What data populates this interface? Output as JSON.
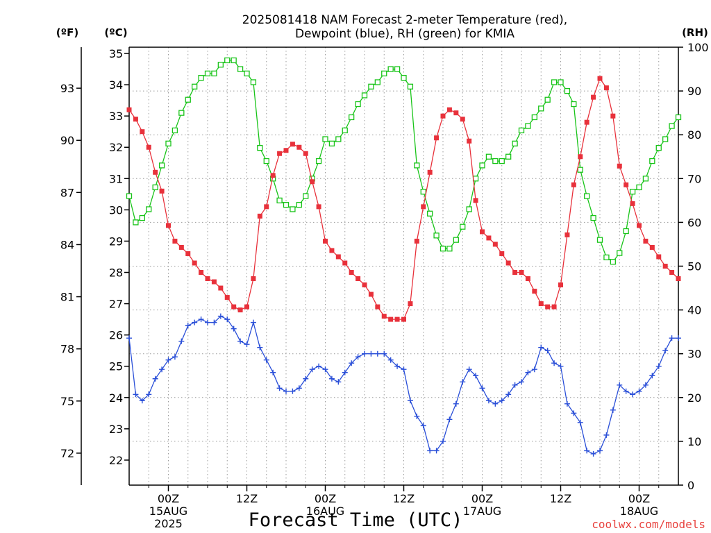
{
  "title_line1": "2025081418 NAM Forecast 2-meter Temperature (red),",
  "title_line2": "Dewpoint (blue), RH (green) for KMIA",
  "units": {
    "fahrenheit": "(ºF)",
    "celsius": "(ºC)",
    "rh": "(RH)"
  },
  "credit": "coolwx.com/models",
  "colors": {
    "temperature": "#e8313b",
    "dewpoint": "#2a4fd8",
    "rh": "#18c418"
  },
  "chart_data": {
    "type": "line",
    "title": "2025081418 NAM Forecast 2-meter Temperature (red), Dewpoint (blue), RH (green) for KMIA",
    "xlabel": "Forecast Time (UTC)",
    "x_unit": "forecast hour from 2025081418",
    "x_range": [
      0,
      84
    ],
    "x_ticks": [
      {
        "hour": 6,
        "label": "00Z",
        "label2": "15AUG",
        "label3": "2025"
      },
      {
        "hour": 18,
        "label": "12Z",
        "label2": "",
        "label3": ""
      },
      {
        "hour": 30,
        "label": "00Z",
        "label2": "16AUG",
        "label3": ""
      },
      {
        "hour": 42,
        "label": "12Z",
        "label2": "",
        "label3": ""
      },
      {
        "hour": 54,
        "label": "00Z",
        "label2": "17AUG",
        "label3": ""
      },
      {
        "hour": 66,
        "label": "12Z",
        "label2": "",
        "label3": ""
      },
      {
        "hour": 78,
        "label": "00Z",
        "label2": "18AUG",
        "label3": ""
      }
    ],
    "y_left_celsius": {
      "range": [
        21.2,
        35.2
      ],
      "ticks": [
        "22",
        "23",
        "24",
        "25",
        "26",
        "27",
        "28",
        "29",
        "30",
        "31",
        "32",
        "33",
        "34",
        "35"
      ]
    },
    "y_far_left_fahrenheit": {
      "ticks": [
        "72",
        "75",
        "78",
        "81",
        "84",
        "87",
        "90",
        "93"
      ]
    },
    "y_right_rh": {
      "range": [
        0,
        100
      ],
      "ticks": [
        "0",
        "10",
        "20",
        "30",
        "40",
        "50",
        "60",
        "70",
        "80",
        "90",
        "100"
      ]
    },
    "grid": true,
    "series": [
      {
        "name": "Temperature",
        "axis": "celsius",
        "marker": "filled-square",
        "x": [
          0,
          1,
          2,
          3,
          4,
          5,
          6,
          7,
          8,
          9,
          10,
          11,
          12,
          13,
          14,
          15,
          16,
          17,
          18,
          19,
          20,
          21,
          22,
          23,
          24,
          25,
          26,
          27,
          28,
          29,
          30,
          31,
          32,
          33,
          34,
          35,
          36,
          37,
          38,
          39,
          40,
          41,
          42,
          43,
          44,
          45,
          46,
          47,
          48,
          49,
          50,
          51,
          52,
          53,
          54,
          55,
          56,
          57,
          58,
          59,
          60,
          61,
          62,
          63,
          64,
          65,
          66,
          67,
          68,
          69,
          70,
          71,
          72,
          73,
          74,
          75,
          76,
          77,
          78,
          79,
          80,
          81,
          82,
          83,
          84
        ],
        "values": [
          33.2,
          32.9,
          32.5,
          32.0,
          31.2,
          30.6,
          29.5,
          29.0,
          28.8,
          28.6,
          28.3,
          28.0,
          27.8,
          27.7,
          27.5,
          27.2,
          26.9,
          26.8,
          26.9,
          27.8,
          29.8,
          30.1,
          31.1,
          31.8,
          31.9,
          32.1,
          32.0,
          31.8,
          30.9,
          30.1,
          29.0,
          28.7,
          28.5,
          28.3,
          28.0,
          27.8,
          27.6,
          27.3,
          26.9,
          26.6,
          26.5,
          26.5,
          26.5,
          27.0,
          29.0,
          30.1,
          31.2,
          32.3,
          33.0,
          33.2,
          33.1,
          32.9,
          32.2,
          30.3,
          29.3,
          29.1,
          28.9,
          28.6,
          28.3,
          28.0,
          28.0,
          27.8,
          27.4,
          27.0,
          26.9,
          26.9,
          27.6,
          29.2,
          30.8,
          31.7,
          32.8,
          33.6,
          34.2,
          33.9,
          33.0,
          31.4,
          30.8,
          30.2,
          29.5,
          29.0,
          28.8,
          28.5,
          28.2,
          28.0,
          27.8
        ]
      },
      {
        "name": "Dewpoint",
        "axis": "celsius",
        "marker": "plus",
        "x": [
          0,
          1,
          2,
          3,
          4,
          5,
          6,
          7,
          8,
          9,
          10,
          11,
          12,
          13,
          14,
          15,
          16,
          17,
          18,
          19,
          20,
          21,
          22,
          23,
          24,
          25,
          26,
          27,
          28,
          29,
          30,
          31,
          32,
          33,
          34,
          35,
          36,
          37,
          38,
          39,
          40,
          41,
          42,
          43,
          44,
          45,
          46,
          47,
          48,
          49,
          50,
          51,
          52,
          53,
          54,
          55,
          56,
          57,
          58,
          59,
          60,
          61,
          62,
          63,
          64,
          65,
          66,
          67,
          68,
          69,
          70,
          71,
          72,
          73,
          74,
          75,
          76,
          77,
          78,
          79,
          80,
          81,
          82,
          83,
          84
        ],
        "values": [
          25.9,
          24.1,
          23.9,
          24.1,
          24.6,
          24.9,
          25.2,
          25.3,
          25.8,
          26.3,
          26.4,
          26.5,
          26.4,
          26.4,
          26.6,
          26.5,
          26.2,
          25.8,
          25.7,
          26.4,
          25.6,
          25.2,
          24.8,
          24.3,
          24.2,
          24.2,
          24.3,
          24.6,
          24.9,
          25.0,
          24.9,
          24.6,
          24.5,
          24.8,
          25.1,
          25.3,
          25.4,
          25.4,
          25.4,
          25.4,
          25.2,
          25.0,
          24.9,
          23.9,
          23.4,
          23.1,
          22.3,
          22.3,
          22.6,
          23.3,
          23.8,
          24.5,
          24.9,
          24.7,
          24.3,
          23.9,
          23.8,
          23.9,
          24.1,
          24.4,
          24.5,
          24.8,
          24.9,
          25.6,
          25.5,
          25.1,
          25.0,
          23.8,
          23.5,
          23.2,
          22.3,
          22.2,
          22.3,
          22.8,
          23.6,
          24.4,
          24.2,
          24.1,
          24.2,
          24.4,
          24.7,
          25.0,
          25.5,
          25.9,
          25.9
        ]
      },
      {
        "name": "RH",
        "axis": "rh",
        "marker": "open-square",
        "x": [
          0,
          1,
          2,
          3,
          4,
          5,
          6,
          7,
          8,
          9,
          10,
          11,
          12,
          13,
          14,
          15,
          16,
          17,
          18,
          19,
          20,
          21,
          22,
          23,
          24,
          25,
          26,
          27,
          28,
          29,
          30,
          31,
          32,
          33,
          34,
          35,
          36,
          37,
          38,
          39,
          40,
          41,
          42,
          43,
          44,
          45,
          46,
          47,
          48,
          49,
          50,
          51,
          52,
          53,
          54,
          55,
          56,
          57,
          58,
          59,
          60,
          61,
          62,
          63,
          64,
          65,
          66,
          67,
          68,
          69,
          70,
          71,
          72,
          73,
          74,
          75,
          76,
          77,
          78,
          79,
          80,
          81,
          82,
          83,
          84
        ],
        "values": [
          66,
          60,
          61,
          63,
          68,
          73,
          78,
          81,
          85,
          88,
          91,
          93,
          94,
          94,
          96,
          97,
          97,
          95,
          94,
          92,
          77,
          74,
          70,
          65,
          64,
          63,
          64,
          66,
          70,
          74,
          79,
          78,
          79,
          81,
          84,
          87,
          89,
          91,
          92,
          94,
          95,
          95,
          93,
          91,
          73,
          67,
          62,
          57,
          54,
          54,
          56,
          59,
          63,
          70,
          73,
          75,
          74,
          74,
          75,
          78,
          81,
          82,
          84,
          86,
          88,
          92,
          92,
          90,
          87,
          72,
          66,
          61,
          56,
          52,
          51,
          53,
          58,
          67,
          68,
          70,
          74,
          77,
          79,
          82,
          84
        ]
      }
    ]
  }
}
